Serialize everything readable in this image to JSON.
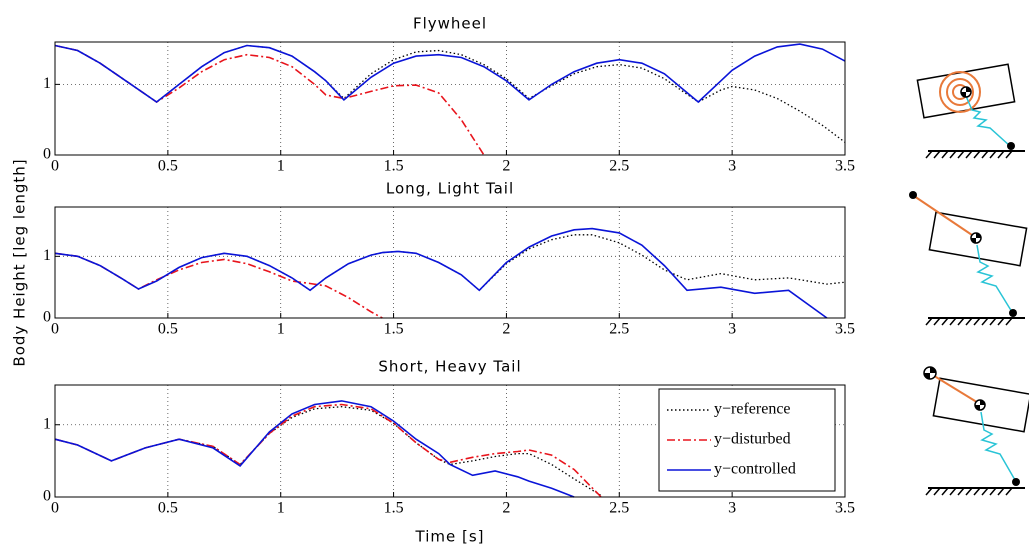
{
  "chart_data": [
    {
      "type": "line",
      "title": "Flywheel",
      "x": [
        0,
        0.1,
        0.2,
        0.3,
        0.45,
        0.55,
        0.65,
        0.75,
        0.85,
        0.95,
        1.05,
        1.15,
        1.2,
        1.28,
        1.4,
        1.5,
        1.6,
        1.7,
        1.8,
        1.9,
        2.0,
        2.1,
        2.2,
        2.3,
        2.4,
        2.5,
        2.6,
        2.7,
        2.85,
        2.95,
        3.0,
        3.1,
        3.2,
        3.3,
        3.4,
        3.5
      ],
      "series": [
        {
          "color": "#000000",
          "dash": "dotted",
          "values": [
            1.55,
            1.48,
            1.3,
            1.08,
            0.75,
            1.0,
            1.25,
            1.45,
            1.55,
            1.52,
            1.4,
            1.18,
            1.05,
            0.8,
            1.15,
            1.35,
            1.46,
            1.48,
            1.42,
            1.28,
            1.08,
            0.8,
            0.98,
            1.15,
            1.25,
            1.28,
            1.23,
            1.08,
            0.75,
            0.92,
            0.97,
            0.92,
            0.8,
            0.62,
            0.42,
            0.18
          ]
        },
        {
          "color": "#e8141c",
          "dash": "dashdot",
          "values": [
            1.55,
            1.48,
            1.3,
            1.08,
            0.75,
            0.95,
            1.18,
            1.35,
            1.42,
            1.38,
            1.25,
            1.0,
            0.85,
            0.8,
            0.9,
            0.98,
            0.99,
            0.88,
            0.5,
            0.0,
            null,
            null,
            null,
            null,
            null,
            null,
            null,
            null,
            null,
            null,
            null,
            null,
            null,
            null,
            null,
            null
          ]
        },
        {
          "color": "#0a14d8",
          "dash": "solid",
          "values": [
            1.55,
            1.48,
            1.3,
            1.08,
            0.75,
            1.0,
            1.25,
            1.45,
            1.55,
            1.52,
            1.4,
            1.18,
            1.05,
            0.78,
            1.1,
            1.3,
            1.4,
            1.42,
            1.38,
            1.25,
            1.05,
            0.78,
            1.0,
            1.18,
            1.3,
            1.35,
            1.3,
            1.15,
            0.75,
            1.05,
            1.2,
            1.4,
            1.53,
            1.57,
            1.5,
            1.33
          ]
        }
      ],
      "xlim": [
        0,
        3.5
      ],
      "ylim": [
        0,
        1.6
      ],
      "xticks": [
        0,
        0.5,
        1,
        1.5,
        2,
        2.5,
        3,
        3.5
      ],
      "yticks": [
        0,
        1
      ],
      "grid": true
    },
    {
      "type": "line",
      "title": "Long, Light Tail",
      "ylabel": "Body Height [leg length]",
      "x": [
        0,
        0.1,
        0.2,
        0.3,
        0.37,
        0.45,
        0.55,
        0.65,
        0.75,
        0.85,
        0.95,
        1.05,
        1.13,
        1.2,
        1.3,
        1.4,
        1.45,
        1.52,
        1.6,
        1.7,
        1.8,
        1.88,
        2.0,
        2.1,
        2.2,
        2.3,
        2.38,
        2.5,
        2.6,
        2.7,
        2.8,
        2.95,
        3.1,
        3.25,
        3.42,
        3.5
      ],
      "series": [
        {
          "color": "#000000",
          "dash": "dotted",
          "values": [
            1.05,
            1.0,
            0.85,
            0.63,
            0.47,
            0.6,
            0.82,
            0.98,
            1.05,
            1.0,
            0.85,
            0.65,
            0.45,
            0.65,
            0.88,
            1.02,
            1.06,
            1.08,
            1.05,
            0.9,
            0.7,
            0.45,
            0.88,
            1.12,
            1.27,
            1.35,
            1.35,
            1.22,
            1.02,
            0.78,
            0.62,
            0.72,
            0.62,
            0.65,
            0.55,
            0.58
          ]
        },
        {
          "color": "#e8141c",
          "dash": "dashdot",
          "values": [
            1.05,
            1.0,
            0.85,
            0.63,
            0.47,
            0.62,
            0.78,
            0.9,
            0.95,
            0.88,
            0.75,
            0.6,
            0.56,
            0.52,
            0.33,
            0.1,
            0.0,
            null,
            null,
            null,
            null,
            null,
            null,
            null,
            null,
            null,
            null,
            null,
            null,
            null,
            null,
            null,
            null,
            null,
            null,
            null
          ]
        },
        {
          "color": "#0a14d8",
          "dash": "solid",
          "values": [
            1.05,
            1.0,
            0.85,
            0.63,
            0.47,
            0.6,
            0.82,
            0.98,
            1.05,
            1.0,
            0.85,
            0.65,
            0.45,
            0.65,
            0.88,
            1.02,
            1.06,
            1.08,
            1.05,
            0.9,
            0.7,
            0.45,
            0.9,
            1.15,
            1.33,
            1.43,
            1.45,
            1.38,
            1.18,
            0.85,
            0.45,
            0.5,
            0.4,
            0.45,
            0.0,
            null
          ]
        }
      ],
      "xlim": [
        0,
        3.5
      ],
      "ylim": [
        0,
        1.8
      ],
      "xticks": [
        0,
        0.5,
        1,
        1.5,
        2,
        2.5,
        3,
        3.5
      ],
      "yticks": [
        0,
        1
      ],
      "grid": true
    },
    {
      "type": "line",
      "title": "Short, Heavy Tail",
      "xlabel": "Time [s]",
      "x": [
        0,
        0.1,
        0.25,
        0.4,
        0.55,
        0.7,
        0.82,
        0.95,
        1.05,
        1.15,
        1.27,
        1.4,
        1.5,
        1.6,
        1.7,
        1.75,
        1.85,
        1.95,
        2.05,
        2.1,
        2.2,
        2.3,
        2.42,
        2.5,
        2.7,
        2.9,
        3.1,
        3.3,
        3.5
      ],
      "series": [
        {
          "name": "y−reference",
          "color": "#000000",
          "dash": "dotted",
          "values": [
            0.8,
            0.72,
            0.5,
            0.68,
            0.8,
            0.7,
            0.45,
            0.88,
            1.1,
            1.22,
            1.25,
            1.2,
            1.02,
            0.75,
            0.52,
            0.45,
            0.5,
            0.56,
            0.6,
            0.6,
            0.45,
            0.25,
            0.02,
            null,
            null,
            null,
            null,
            null,
            null
          ]
        },
        {
          "name": "y−disturbed",
          "color": "#e8141c",
          "dash": "dashdot",
          "values": [
            0.8,
            0.72,
            0.5,
            0.68,
            0.8,
            0.7,
            0.45,
            0.88,
            1.12,
            1.25,
            1.28,
            1.22,
            1.02,
            0.75,
            0.52,
            0.48,
            0.55,
            0.6,
            0.63,
            0.65,
            0.58,
            0.38,
            0.0,
            null,
            null,
            null,
            null,
            null,
            null
          ]
        },
        {
          "name": "y−controlled",
          "color": "#0a14d8",
          "dash": "solid",
          "values": [
            0.8,
            0.72,
            0.5,
            0.68,
            0.8,
            0.68,
            0.43,
            0.9,
            1.15,
            1.28,
            1.33,
            1.25,
            1.05,
            0.8,
            0.6,
            0.45,
            0.3,
            0.36,
            0.28,
            0.22,
            0.12,
            0.0,
            null,
            null,
            null,
            null,
            null,
            null,
            null
          ]
        }
      ],
      "xlim": [
        0,
        3.5
      ],
      "ylim": [
        0,
        1.55
      ],
      "xticks": [
        0,
        0.5,
        1,
        1.5,
        2,
        2.5,
        3,
        3.5
      ],
      "yticks": [
        0,
        1
      ],
      "grid": true,
      "legend": "lower right"
    }
  ]
}
